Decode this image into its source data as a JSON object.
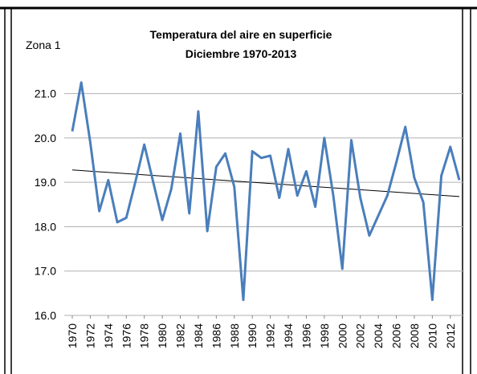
{
  "chart_data": {
    "type": "line",
    "title": "Temperatura del aire en superficie",
    "subtitle": "Diciembre 1970-2013",
    "annotation": "Zona 1",
    "x": [
      1970,
      1971,
      1972,
      1973,
      1974,
      1975,
      1976,
      1977,
      1978,
      1979,
      1980,
      1981,
      1982,
      1983,
      1984,
      1985,
      1986,
      1987,
      1988,
      1989,
      1990,
      1991,
      1992,
      1993,
      1994,
      1995,
      1996,
      1997,
      1998,
      1999,
      2000,
      2001,
      2002,
      2003,
      2004,
      2005,
      2006,
      2007,
      2008,
      2009,
      2010,
      2011,
      2012,
      2013
    ],
    "series": [
      {
        "color": "#4a7ebb",
        "values": [
          20.15,
          21.25,
          19.9,
          18.35,
          19.05,
          18.1,
          18.2,
          19.0,
          19.85,
          19.0,
          18.15,
          18.85,
          20.1,
          18.3,
          20.6,
          17.9,
          19.35,
          19.65,
          18.9,
          16.35,
          19.7,
          19.55,
          19.6,
          18.65,
          19.75,
          18.7,
          19.25,
          18.45,
          20.0,
          18.7,
          17.05,
          19.95,
          18.65,
          17.8,
          18.25,
          18.7,
          19.45,
          20.25,
          19.1,
          18.55,
          16.35,
          19.15,
          19.8,
          19.05
        ]
      }
    ],
    "trendline": {
      "color": "#000000",
      "values": [
        19.28,
        18.68
      ]
    },
    "xlim": [
      1970,
      2013
    ],
    "xticks": [
      1970,
      1972,
      1974,
      1976,
      1978,
      1980,
      1982,
      1984,
      1986,
      1988,
      1990,
      1992,
      1994,
      1996,
      1998,
      2000,
      2002,
      2004,
      2006,
      2008,
      2010,
      2012
    ],
    "ylim": [
      16,
      21.5
    ],
    "yticks": [
      {
        "value": 16,
        "label": "16.0"
      },
      {
        "value": 17,
        "label": "17.0"
      },
      {
        "value": 18,
        "label": "18.0"
      },
      {
        "value": 19,
        "label": "19.0"
      },
      {
        "value": 20,
        "label": "20.0"
      },
      {
        "value": 21,
        "label": "21.0"
      }
    ],
    "grid": true
  }
}
